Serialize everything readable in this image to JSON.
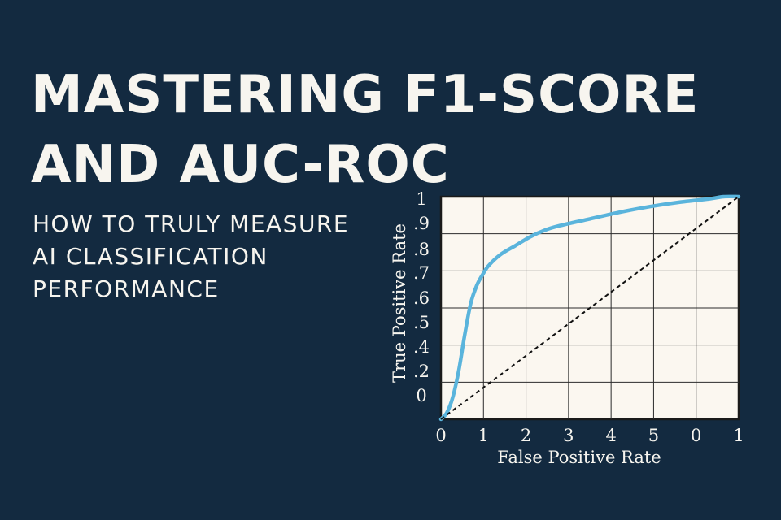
{
  "title": {
    "line1": "MASTERING F1-SCORE",
    "line2": "AND AUC-ROC"
  },
  "subtitle": {
    "line1": "HOW TO TRULY MEASURE",
    "line2": "AI CLASSIFICATION",
    "line3": "PERFORMANCE"
  },
  "chart_data": {
    "type": "line",
    "xlabel": "False Positive Rate",
    "ylabel": "True Positive Rate",
    "xlim": [
      0,
      1
    ],
    "ylim": [
      0,
      1
    ],
    "x_tick_labels": [
      "0",
      "1",
      "2",
      "3",
      "4",
      "5",
      "0",
      "1"
    ],
    "y_tick_labels": [
      "0",
      ".2",
      ".4",
      ".5",
      ".6",
      ".7",
      ".8",
      ".9",
      "1"
    ],
    "grid": true,
    "series": [
      {
        "style": "solid",
        "color": "#5ab4dc",
        "x": [
          0,
          0.02,
          0.04,
          0.06,
          0.08,
          0.1,
          0.12,
          0.14,
          0.16,
          0.2,
          0.25,
          0.3,
          0.35,
          0.4,
          0.5,
          0.6,
          0.7,
          0.8,
          0.9,
          0.95,
          1
        ],
        "y": [
          0,
          0.03,
          0.1,
          0.22,
          0.38,
          0.52,
          0.6,
          0.65,
          0.69,
          0.74,
          0.78,
          0.82,
          0.85,
          0.87,
          0.9,
          0.93,
          0.955,
          0.975,
          0.99,
          1,
          1
        ]
      },
      {
        "style": "dashed",
        "color": "#111111",
        "x": [
          0,
          1
        ],
        "y": [
          0,
          1
        ]
      }
    ]
  }
}
